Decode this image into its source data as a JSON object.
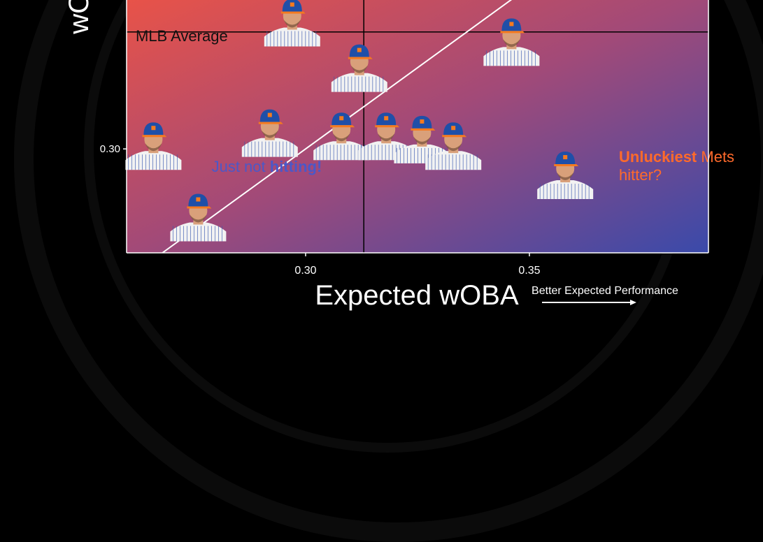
{
  "chart_data": {
    "type": "scatter",
    "xlabel": "Expected wOBA",
    "ylabel": "wOBA",
    "x_ticks": [
      0.3,
      0.35
    ],
    "x_tick_labels": [
      "0.30",
      "0.35"
    ],
    "y_ticks": [
      0.3
    ],
    "y_tick_labels": [
      "0.30"
    ],
    "xlim": [
      0.26,
      0.39
    ],
    "ylim": [
      0.268,
      0.348
    ],
    "reference_lines": {
      "mlb_average_x": 0.313,
      "mlb_average_y": 0.336,
      "label": "MLB Average"
    },
    "diagonal": "y = x",
    "points": [
      {
        "x": 0.266,
        "y": 0.3
      },
      {
        "x": 0.276,
        "y": 0.278
      },
      {
        "x": 0.292,
        "y": 0.304
      },
      {
        "x": 0.297,
        "y": 0.338
      },
      {
        "x": 0.312,
        "y": 0.324
      },
      {
        "x": 0.308,
        "y": 0.303
      },
      {
        "x": 0.318,
        "y": 0.303
      },
      {
        "x": 0.326,
        "y": 0.302
      },
      {
        "x": 0.333,
        "y": 0.3
      },
      {
        "x": 0.346,
        "y": 0.332
      },
      {
        "x": 0.358,
        "y": 0.291
      }
    ],
    "annotations": [
      {
        "text_parts": [
          {
            "t": "Just not ",
            "bold": false
          },
          {
            "t": "hitting!",
            "bold": true
          }
        ],
        "color": "#4b58c8",
        "x": 0.279,
        "y": 0.293
      },
      {
        "text_parts": [
          {
            "t": "Unluckiest",
            "bold": true
          },
          {
            "t": " Mets",
            "bold": false
          }
        ],
        "text2": "hitter?",
        "color": "#ff6a2b",
        "x": 0.37,
        "y": 0.296
      }
    ],
    "arrow_label": "Better Expected Performance",
    "grid": false,
    "background_gradient": [
      "#ea5347",
      "#a24a78",
      "#3a4aaa"
    ]
  },
  "colors": {
    "line": "#ffffff",
    "avg_line": "#000000",
    "cap": "#1f4fa8",
    "cap_brim": "#f47a1f",
    "skin": "#d9a07a",
    "jersey": "#f2f2f2",
    "pinstripe": "#3b5ab0"
  },
  "icons": {
    "player": "player-headshot-icon",
    "arrow": "right-arrow-icon"
  }
}
